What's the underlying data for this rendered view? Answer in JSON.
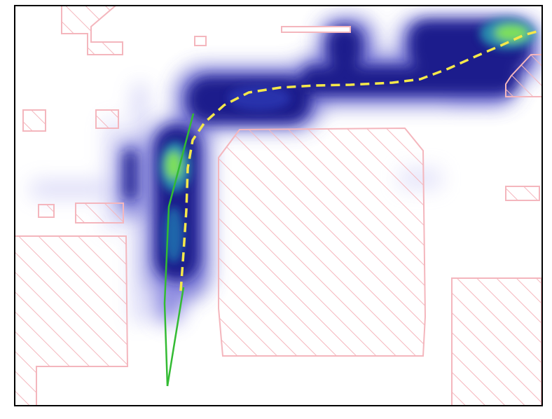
{
  "map": {
    "background": "#ffffff",
    "frame_color": "#000000",
    "obstacle_stroke": "#f4b6bd",
    "obstacle_hatch": "#f4b6bd",
    "heatmap_colors": {
      "low": "#7b78e6",
      "mid": "#1a1f8c",
      "high": "#1d2a9e",
      "peak": "#7ee05a"
    },
    "predicted_path_color": "#f5e84a",
    "predicted_path_style": "dashed",
    "ground_truth_path_color": "#33bb33",
    "ground_truth_path_style": "solid",
    "obstacle_count": 15,
    "text_labels": []
  }
}
